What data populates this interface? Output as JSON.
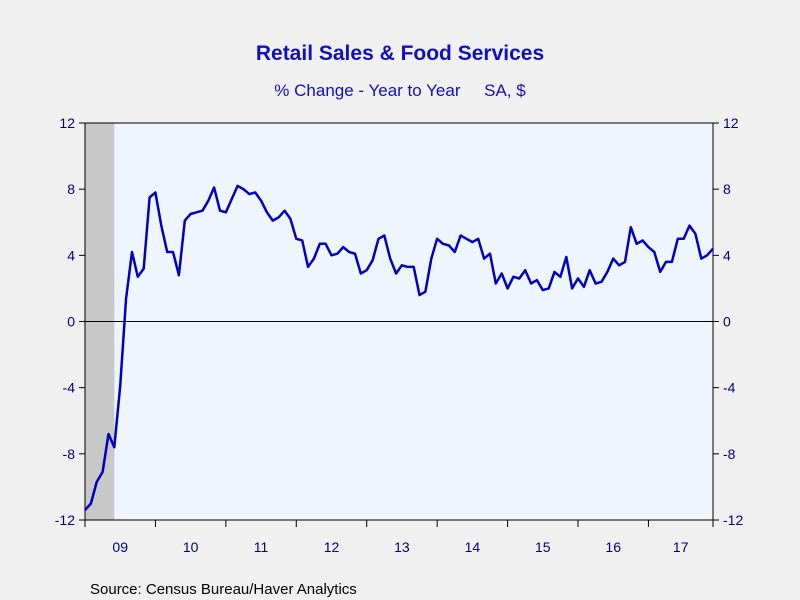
{
  "chart_data": {
    "type": "line",
    "title": "Retail Sales & Food Services",
    "subtitle": "% Change - Year to Year     SA, $",
    "source": "Source:  Census Bureau/Haver Analytics",
    "ylim": [
      -12,
      12
    ],
    "yticks": [
      "12",
      "8",
      "4",
      "0",
      "-4",
      "-8",
      "-12"
    ],
    "ytick_values": [
      12,
      8,
      4,
      0,
      -4,
      -8,
      -12
    ],
    "xlim": [
      2009.0,
      2017.9167
    ],
    "xticks": [
      {
        "label": "09",
        "year": 2009
      },
      {
        "label": "10",
        "year": 2010
      },
      {
        "label": "11",
        "year": 2011
      },
      {
        "label": "12",
        "year": 2012
      },
      {
        "label": "13",
        "year": 2013
      },
      {
        "label": "14",
        "year": 2014
      },
      {
        "label": "15",
        "year": 2015
      },
      {
        "label": "16",
        "year": 2016
      },
      {
        "label": "17",
        "year": 2017
      }
    ],
    "recession_shading": {
      "start": 2009.0,
      "end": 2009.4167
    },
    "zero_line": true,
    "grid": false,
    "line_color": "#0000c0",
    "plot_bg": "#eef5ff",
    "shade_color": "#c8c8c8",
    "series": [
      {
        "x_start": "2009-01",
        "frequency": "monthly",
        "values": [
          -11.4,
          -11.0,
          -9.7,
          -9.1,
          -6.8,
          -7.6,
          -3.9,
          1.4,
          4.2,
          2.7,
          3.2,
          7.5,
          7.8,
          5.8,
          4.2,
          4.2,
          2.8,
          6.1,
          6.5,
          6.6,
          6.7,
          7.3,
          8.1,
          6.7,
          6.6,
          7.4,
          8.2,
          8.0,
          7.7,
          7.8,
          7.3,
          6.6,
          6.1,
          6.3,
          6.7,
          6.2,
          5.0,
          4.9,
          3.3,
          3.8,
          4.7,
          4.7,
          4.0,
          4.1,
          4.5,
          4.2,
          4.1,
          2.9,
          3.1,
          3.7,
          5.0,
          5.2,
          3.8,
          2.9,
          3.4,
          3.3,
          3.3,
          1.6,
          1.8,
          3.8,
          5.0,
          4.7,
          4.6,
          4.2,
          5.2,
          5.0,
          4.8,
          5.0,
          3.8,
          4.1,
          2.3,
          2.9,
          2.0,
          2.7,
          2.6,
          3.1,
          2.3,
          2.5,
          1.9,
          2.0,
          3.0,
          2.7,
          3.9,
          2.0,
          2.6,
          2.1,
          3.1,
          2.3,
          2.4,
          3.0,
          3.8,
          3.4,
          3.6,
          5.7,
          4.7,
          4.9,
          4.5,
          4.2,
          3.0,
          3.6,
          3.6,
          5.0,
          5.0,
          5.8,
          5.3,
          3.8,
          4.0,
          4.4
        ]
      }
    ]
  }
}
